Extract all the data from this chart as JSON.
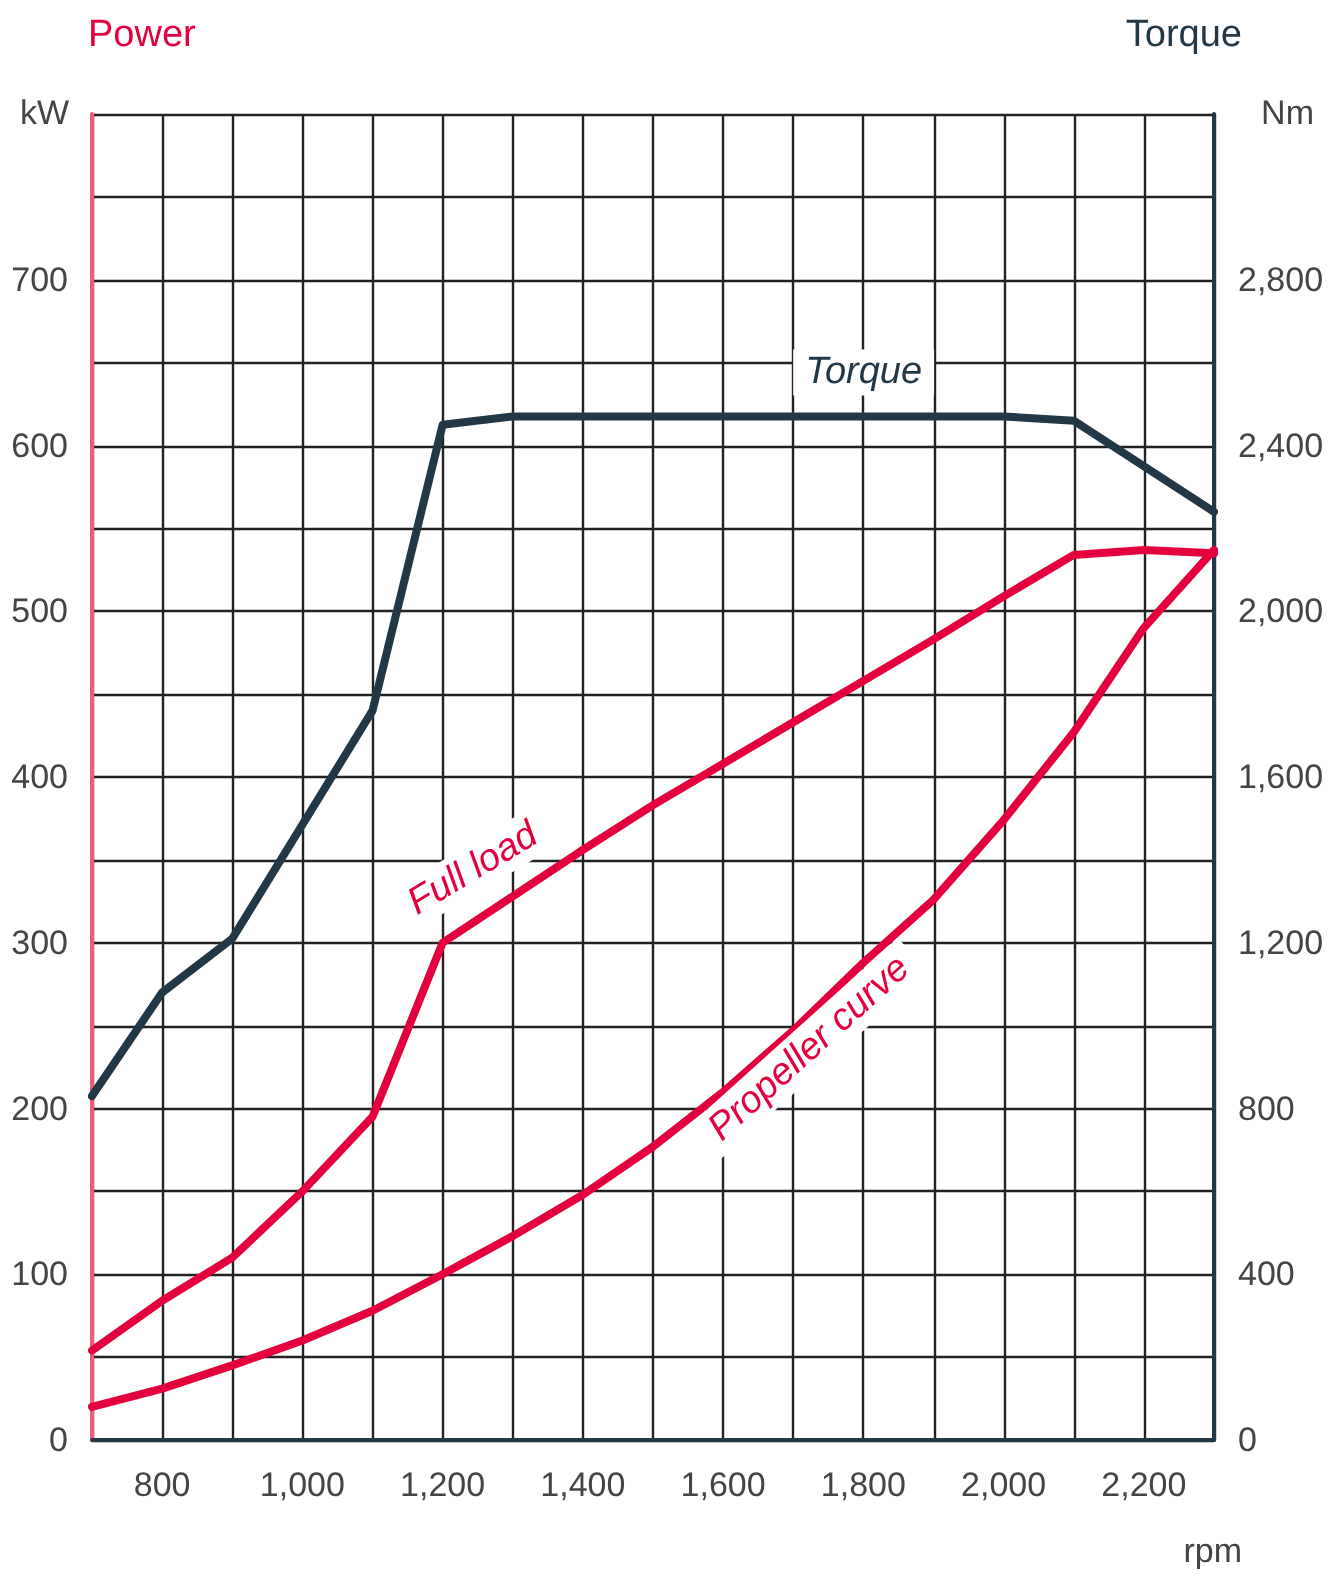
{
  "chart_data": {
    "type": "line",
    "ylabel": "Power",
    "y2label": "Torque",
    "xlabel": "rpm",
    "annotations": [
      "kW",
      "Nm"
    ],
    "x": [
      700,
      800,
      900,
      1000,
      1100,
      1200,
      1300,
      1400,
      1500,
      1600,
      1700,
      1800,
      1900,
      2000,
      2100,
      2200,
      2300
    ],
    "series": [
      {
        "name": "Torque",
        "color": "#233847",
        "axis": "y2",
        "x": [
          700,
          800,
          900,
          1100,
          1200,
          1300,
          2000,
          2100,
          2300
        ],
        "values": [
          830,
          1080,
          1210,
          1760,
          2450,
          2470,
          2470,
          2460,
          2240
        ]
      },
      {
        "name": "Full load",
        "color": "#e4003c",
        "values": [
          54,
          84,
          110,
          150,
          195,
          300,
          328,
          356,
          383,
          408,
          433,
          458,
          483,
          509,
          534,
          537,
          535
        ]
      },
      {
        "name": "Propeller curve",
        "color": "#e4003c",
        "values": [
          20,
          31,
          45,
          60,
          78,
          100,
          123,
          148,
          177,
          210,
          247,
          288,
          326,
          374,
          427,
          490,
          537
        ]
      }
    ],
    "xlim": [
      700,
      2300
    ],
    "xticks": [
      {
        "value": 700,
        "label": null
      },
      800,
      {
        "value": 900,
        "label": null
      },
      {
        "value": 1000,
        "label": "1,000"
      },
      {
        "value": 1100,
        "label": null
      },
      {
        "value": 1200,
        "label": "1,200"
      },
      {
        "value": 1300,
        "label": null
      },
      {
        "value": 1400,
        "label": "1,400"
      },
      {
        "value": 1500,
        "label": null
      },
      {
        "value": 1600,
        "label": "1,600"
      },
      {
        "value": 1700,
        "label": null
      },
      {
        "value": 1800,
        "label": "1,800"
      },
      {
        "value": 1900,
        "label": null
      },
      {
        "value": 2000,
        "label": "2,000"
      },
      {
        "value": 2100,
        "label": null
      },
      {
        "value": 2200,
        "label": "2,200"
      },
      {
        "value": 2300,
        "label": null
      }
    ],
    "ylim": [
      0,
      800
    ],
    "yticks": [
      0,
      {
        "value": 50,
        "label": null
      },
      100,
      {
        "value": 150,
        "label": null
      },
      200,
      {
        "value": 250,
        "label": null
      },
      300,
      {
        "value": 350,
        "label": null
      },
      400,
      {
        "value": 450,
        "label": null
      },
      500,
      {
        "value": 550,
        "label": null
      },
      600,
      {
        "value": 650,
        "label": null
      },
      700,
      {
        "value": 750,
        "label": null
      },
      {
        "value": 800,
        "label": null
      }
    ],
    "y2lim": [
      0,
      3200
    ],
    "y2ticks": [
      0,
      400,
      800,
      {
        "value": 1200,
        "label": "1,200"
      },
      {
        "value": 1600,
        "label": "1,600"
      },
      {
        "value": 2000,
        "label": "2,000"
      },
      {
        "value": 2400,
        "label": "2,400"
      },
      {
        "value": 2800,
        "label": "2,800"
      },
      {
        "value": 3200,
        "label": null
      }
    ],
    "grid": true,
    "marker": "none",
    "line_style": "solid"
  }
}
